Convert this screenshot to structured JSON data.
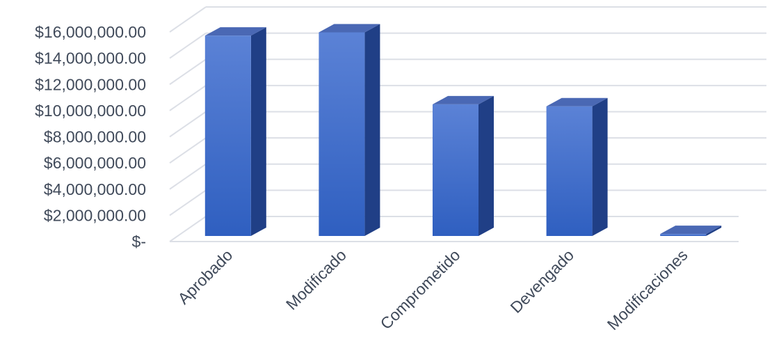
{
  "chart_data": {
    "type": "bar",
    "three_d": true,
    "categories": [
      "Aprobado",
      "Modificado",
      "Comprometido",
      "Devengado",
      "Modificaciones"
    ],
    "values": [
      15300000,
      15550000,
      10050000,
      9900000,
      150000
    ],
    "ylim": [
      0,
      16000000
    ],
    "y_ticks": [
      0,
      2000000,
      4000000,
      6000000,
      8000000,
      10000000,
      12000000,
      14000000,
      16000000
    ],
    "y_tick_labels": [
      "$-",
      "$2,000,000.00",
      "$4,000,000.00",
      "$6,000,000.00",
      "$8,000,000.00",
      "$10,000,000.00",
      "$12,000,000.00",
      "$14,000,000.00",
      "$16,000,000.00"
    ],
    "grid": true,
    "legend": "none",
    "colors": {
      "front_top": "#5b82d6",
      "front_bottom": "#2f5fc0",
      "side": "#203f86",
      "top": "#4a68b4",
      "grid": "#dcdfe6",
      "text": "#404a5a"
    }
  }
}
